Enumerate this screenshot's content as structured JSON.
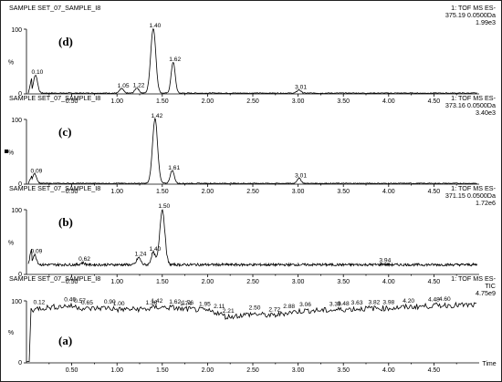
{
  "chart_data": [
    {
      "type": "line",
      "panel_label": "(d)",
      "sample_label": "SAMPLE SET_07_SAMPLE_I8",
      "detector": "1: TOF MS ES-",
      "mass_window": "375.19 0.0500Da",
      "intensity": "1.99e3",
      "ylabel": "%",
      "ylim": [
        0,
        100
      ],
      "xlim": [
        0.0,
        5.0
      ],
      "y_ticks": [
        "0",
        "100"
      ],
      "peaks": [
        {
          "x": 0.1,
          "label": "0.10",
          "y": 28
        },
        {
          "x": 1.05,
          "label": "1.05",
          "y": 7
        },
        {
          "x": 1.22,
          "label": "1.22",
          "y": 8
        },
        {
          "x": 1.4,
          "label": "1.40",
          "y": 100
        },
        {
          "x": 1.62,
          "label": "1.62",
          "y": 48
        },
        {
          "x": 3.01,
          "label": "3.01",
          "y": 5
        }
      ]
    },
    {
      "type": "line",
      "panel_label": "(c)",
      "sample_label": "SAMPLE SET_07_SAMPLE_I8",
      "detector": "1: TOF MS ES-",
      "mass_window": "373.16 0.0500Da",
      "intensity": "3.40e3",
      "ylabel": "%",
      "ylim": [
        0,
        100
      ],
      "xlim": [
        0.0,
        5.0
      ],
      "y_ticks": [
        "0",
        "100"
      ],
      "peaks": [
        {
          "x": 0.09,
          "label": "0.09",
          "y": 15
        },
        {
          "x": 1.42,
          "label": "1.42",
          "y": 100
        },
        {
          "x": 1.61,
          "label": "1.61",
          "y": 20
        },
        {
          "x": 3.01,
          "label": "3.01",
          "y": 8
        }
      ]
    },
    {
      "type": "line",
      "panel_label": "(b)",
      "sample_label": "SAMPLE SET_07_SAMPLE_I8",
      "detector": "1: TOF MS ES-",
      "mass_window": "371.15 0.0500Da",
      "intensity": "1.72e6",
      "ylabel": "%",
      "ylim": [
        0,
        100
      ],
      "xlim": [
        0.0,
        5.0
      ],
      "y_ticks": [
        "0",
        "100"
      ],
      "baseline": 15,
      "peaks": [
        {
          "x": 0.09,
          "label": "0.09",
          "y": 30
        },
        {
          "x": 0.62,
          "label": "0.62",
          "y": 18
        },
        {
          "x": 1.24,
          "label": "1.24",
          "y": 26
        },
        {
          "x": 1.4,
          "label": "1.40",
          "y": 34
        },
        {
          "x": 1.5,
          "label": "1.50",
          "y": 100
        },
        {
          "x": 3.94,
          "label": "3.94",
          "y": 16
        }
      ]
    },
    {
      "type": "line",
      "panel_label": "(a)",
      "sample_label": "SAMPLE SET_07_SAMPLE_I8",
      "detector": "1: TOF MS ES-",
      "mode": "TIC",
      "intensity": "4.75e9",
      "ylabel": "%",
      "xlabel": "Time",
      "ylim": [
        0,
        100
      ],
      "xlim": [
        0.0,
        5.0
      ],
      "y_ticks": [
        "0",
        "100"
      ],
      "x_ticks": [
        "0.50",
        "1.00",
        "1.50",
        "2.00",
        "2.50",
        "3.00",
        "3.50",
        "4.00",
        "4.50"
      ],
      "peaks": [
        {
          "x": 0.12,
          "label": "0.12",
          "y": 92
        },
        {
          "x": 0.46,
          "label": "0.46",
          "y": 96
        },
        {
          "x": 0.57,
          "label": "0.57",
          "y": 94
        },
        {
          "x": 0.65,
          "label": "0.65",
          "y": 91
        },
        {
          "x": 0.9,
          "label": "0.90",
          "y": 93
        },
        {
          "x": 1.0,
          "label": "1.00",
          "y": 90
        },
        {
          "x": 1.36,
          "label": "1.36",
          "y": 91
        },
        {
          "x": 1.42,
          "label": "1.42",
          "y": 94
        },
        {
          "x": 1.62,
          "label": "1.62",
          "y": 93
        },
        {
          "x": 1.74,
          "label": "1.74",
          "y": 90
        },
        {
          "x": 1.76,
          "label": "1.76",
          "y": 91
        },
        {
          "x": 1.95,
          "label": "1.95",
          "y": 89
        },
        {
          "x": 2.11,
          "label": "2.11",
          "y": 85
        },
        {
          "x": 2.21,
          "label": "2.21",
          "y": 78
        },
        {
          "x": 2.5,
          "label": "2.50",
          "y": 83
        },
        {
          "x": 2.72,
          "label": "2.72",
          "y": 80
        },
        {
          "x": 2.88,
          "label": "2.88",
          "y": 85
        },
        {
          "x": 3.06,
          "label": "3.06",
          "y": 88
        },
        {
          "x": 3.39,
          "label": "3.39",
          "y": 89
        },
        {
          "x": 3.48,
          "label": "3.48",
          "y": 90
        },
        {
          "x": 3.63,
          "label": "3.63",
          "y": 91
        },
        {
          "x": 3.82,
          "label": "3.82",
          "y": 92
        },
        {
          "x": 3.98,
          "label": "3.98",
          "y": 92
        },
        {
          "x": 4.2,
          "label": "4.20",
          "y": 94
        },
        {
          "x": 4.48,
          "label": "4.48",
          "y": 96
        },
        {
          "x": 4.6,
          "label": "4.60",
          "y": 97
        }
      ]
    }
  ]
}
